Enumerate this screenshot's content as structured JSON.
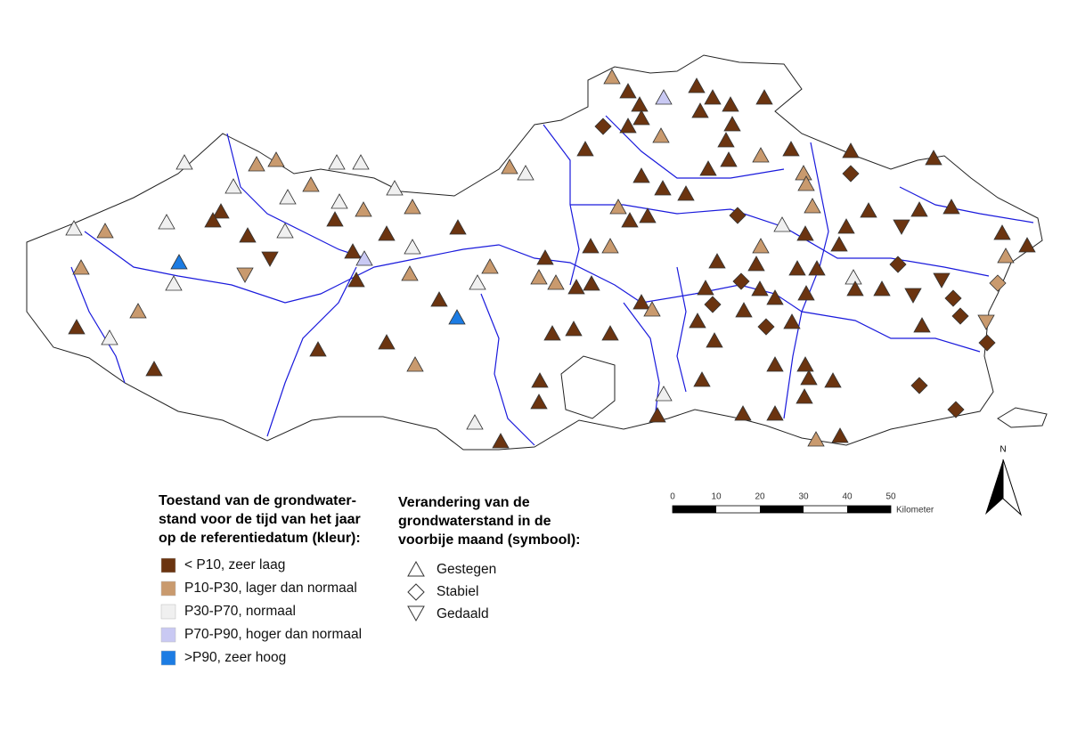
{
  "legend_color": {
    "title": [
      "Toestand van de grondwater-",
      "stand voor de tijd van het jaar",
      "op de referentiedatum (kleur):"
    ],
    "items": [
      {
        "label": "< P10, zeer laag",
        "color": "#6b3410"
      },
      {
        "label": "P10-P30, lager dan normaal",
        "color": "#c99a6e"
      },
      {
        "label": "P30-P70, normaal",
        "color": "#f0f0f0"
      },
      {
        "label": "P70-P90, hoger dan normaal",
        "color": "#c9c9f3"
      },
      {
        "label": ">P90, zeer hoog",
        "color": "#1c7ce3"
      }
    ]
  },
  "legend_symbol": {
    "title": [
      "Verandering van de",
      "grondwaterstand in de",
      "voorbije maand (symbool):"
    ],
    "items": [
      {
        "label": "Gestegen"
      },
      {
        "label": "Stabiel"
      },
      {
        "label": "Gedaald"
      }
    ]
  },
  "scale": {
    "ticks": [
      0,
      10,
      20,
      30,
      40,
      50
    ],
    "unit": "Kilometer"
  },
  "north_arrow": "N"
}
